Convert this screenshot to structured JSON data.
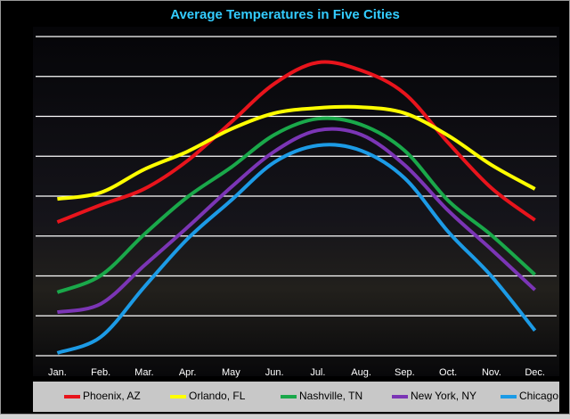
{
  "chart_data": {
    "type": "line",
    "title": "Average Temperatures in Five Cities",
    "categories": [
      "Jan.",
      "Feb.",
      "Mar.",
      "Apr.",
      "May",
      "Jun.",
      "Jul.",
      "Aug.",
      "Sep.",
      "Oct.",
      "Nov.",
      "Dec."
    ],
    "series": [
      {
        "name": "Phoenix, AZ",
        "color": "#e8141c",
        "values": [
          53.5,
          57.8,
          61.8,
          68.9,
          78.5,
          88.2,
          93.5,
          91.5,
          85.7,
          73.4,
          62,
          54
        ]
      },
      {
        "name": "Orlando, FL",
        "color": "#ffff00",
        "values": [
          59.3,
          60.9,
          66.7,
          71.2,
          76.8,
          80.8,
          82.1,
          82.3,
          80.8,
          75.2,
          67.8,
          61.8
        ]
      },
      {
        "name": "Nashville, TN",
        "color": "#1aa84a",
        "values": [
          35.9,
          40.1,
          50.4,
          59.8,
          67.2,
          75.4,
          79.4,
          77.9,
          71.4,
          58.9,
          50.2,
          40.3
        ]
      },
      {
        "name": "New York, NY",
        "color": "#7b35b5",
        "values": [
          30.9,
          33,
          42.6,
          52.2,
          62.2,
          71.2,
          76.5,
          75.4,
          67.8,
          56.4,
          46.6,
          36.5
        ]
      },
      {
        "name": "Chicago, Il",
        "color": "#1c9be6",
        "values": [
          20.7,
          24.7,
          37.2,
          49.3,
          58.9,
          68.5,
          72.7,
          71.4,
          64.5,
          51.1,
          39.9,
          26.3
        ]
      }
    ],
    "ylim": [
      20,
      100
    ],
    "yticks": [
      20,
      30,
      40,
      50,
      60,
      70,
      80,
      90,
      100
    ],
    "grid": true,
    "legend": "bottom"
  }
}
